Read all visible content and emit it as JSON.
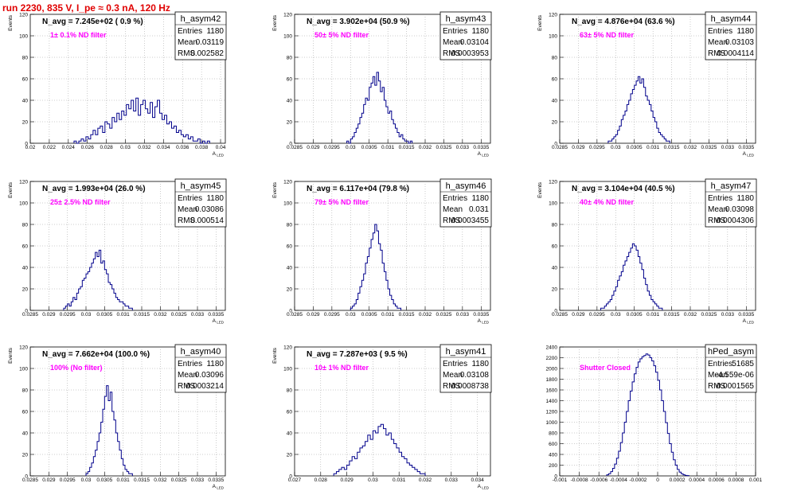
{
  "title": "run 2230,   835 V, I_pe ≈ 0.3 nA, 120 Hz",
  "stats_labels": {
    "entries": "Entries",
    "mean": "Mean",
    "rms": "RMS"
  },
  "colors": {
    "hist": "#00008b",
    "grid": "#9a9a9a",
    "filter_text": "#ff00ff",
    "title_text": "#e00000"
  },
  "chart_data": [
    {
      "type": "histogram",
      "name": "h_asym42",
      "nlabel": "N_avg = 7.245e+02 ( 0.9 %)",
      "filter": "1± 0.1% ND filter",
      "entries": "1180",
      "mean": "0.03119",
      "rms": "0.002582",
      "ylabel": "Events",
      "xlabel": "A_LED",
      "xlim": [
        0.02,
        0.0405
      ],
      "ylim": [
        0,
        120
      ],
      "xticks": [
        0.02,
        0.022,
        0.024,
        0.026,
        0.028,
        0.03,
        0.032,
        0.034,
        0.036,
        0.038,
        0.04
      ],
      "xticklabels": [
        "0.02",
        "0.022",
        "0.024",
        "0.026",
        "0.028",
        "0.03",
        "0.032",
        "0.034",
        "0.036",
        "0.038",
        "0.04"
      ],
      "yticks": [
        0,
        20,
        40,
        60,
        80,
        100,
        120
      ],
      "bin_start": 0.0246,
      "bin_width": 0.00025,
      "counts": [
        2,
        0,
        2,
        4,
        2,
        6,
        4,
        8,
        12,
        8,
        14,
        16,
        10,
        20,
        18,
        14,
        24,
        20,
        28,
        22,
        30,
        26,
        36,
        32,
        40,
        30,
        42,
        26,
        36,
        40,
        32,
        28,
        38,
        24,
        34,
        40,
        28,
        22,
        26,
        18,
        20,
        14,
        16,
        10,
        12,
        8,
        6,
        8,
        4,
        6,
        2,
        2,
        4,
        0,
        2,
        0,
        2
      ]
    },
    {
      "type": "histogram",
      "name": "h_asym43",
      "nlabel": "N_avg = 3.902e+04 (50.9 %)",
      "filter": "50± 5% ND filter",
      "entries": "1180",
      "mean": "0.03104",
      "rms": "0.0003953",
      "ylabel": "Events",
      "xlabel": "A_LED",
      "xlim": [
        0.0285,
        0.03375
      ],
      "ylim": [
        0,
        120
      ],
      "xticks": [
        0.0285,
        0.029,
        0.0295,
        0.03,
        0.0305,
        0.031,
        0.0315,
        0.032,
        0.0325,
        0.033,
        0.0335
      ],
      "xticklabels": [
        "0.0285",
        "0.029",
        "0.0295",
        "0.03",
        "0.0305",
        "0.031",
        "0.0315",
        "0.032",
        "0.0325",
        "0.033",
        "0.0335"
      ],
      "yticks": [
        0,
        20,
        40,
        60,
        80,
        100,
        120
      ],
      "bin_start": 0.0299,
      "bin_width": 5e-05,
      "counts": [
        2,
        0,
        4,
        6,
        10,
        14,
        18,
        24,
        28,
        36,
        42,
        40,
        52,
        56,
        62,
        54,
        66,
        58,
        48,
        52,
        40,
        34,
        28,
        30,
        22,
        18,
        14,
        10,
        6,
        8,
        4,
        2,
        2,
        0,
        2
      ]
    },
    {
      "type": "histogram",
      "name": "h_asym44",
      "nlabel": "N_avg = 4.876e+04 (63.6 %)",
      "filter": "63± 5% ND filter",
      "entries": "1180",
      "mean": "0.03103",
      "rms": "0.0004114",
      "ylabel": "Events",
      "xlabel": "A_LED",
      "xlim": [
        0.0285,
        0.03375
      ],
      "ylim": [
        0,
        120
      ],
      "xticks": [
        0.0285,
        0.029,
        0.0295,
        0.03,
        0.0305,
        0.031,
        0.0315,
        0.032,
        0.0325,
        0.033,
        0.0335
      ],
      "xticklabels": [
        "0.0285",
        "0.029",
        "0.0295",
        "0.03",
        "0.0305",
        "0.031",
        "0.0315",
        "0.032",
        "0.0325",
        "0.033",
        "0.0335"
      ],
      "yticks": [
        0,
        20,
        40,
        60,
        80,
        100,
        120
      ],
      "bin_start": 0.0298,
      "bin_width": 5e-05,
      "counts": [
        2,
        2,
        4,
        6,
        8,
        12,
        16,
        22,
        26,
        30,
        36,
        40,
        46,
        50,
        54,
        58,
        62,
        56,
        60,
        52,
        44,
        40,
        36,
        30,
        24,
        20,
        14,
        10,
        8,
        6,
        4,
        2,
        2
      ]
    },
    {
      "type": "histogram",
      "name": "h_asym45",
      "nlabel": "N_avg = 1.993e+04 (26.0 %)",
      "filter": "25± 2.5% ND filter",
      "entries": "1180",
      "mean": "0.03086",
      "rms": "0.000514",
      "ylabel": "Events",
      "xlabel": "A_LED",
      "xlim": [
        0.0285,
        0.03375
      ],
      "ylim": [
        0,
        120
      ],
      "xticks": [
        0.0285,
        0.029,
        0.0295,
        0.03,
        0.0305,
        0.031,
        0.0315,
        0.032,
        0.0325,
        0.033,
        0.0335
      ],
      "xticklabels": [
        "0.0285",
        "0.029",
        "0.0295",
        "0.03",
        "0.0305",
        "0.031",
        "0.0315",
        "0.032",
        "0.0325",
        "0.033",
        "0.0335"
      ],
      "yticks": [
        0,
        20,
        40,
        60,
        80,
        100,
        120
      ],
      "bin_start": 0.0294,
      "bin_width": 5e-05,
      "counts": [
        2,
        4,
        6,
        4,
        8,
        12,
        10,
        16,
        20,
        22,
        28,
        30,
        34,
        36,
        40,
        44,
        48,
        54,
        50,
        56,
        44,
        46,
        38,
        34,
        26,
        24,
        20,
        16,
        12,
        10,
        8,
        8,
        6,
        4,
        4,
        2,
        2
      ]
    },
    {
      "type": "histogram",
      "name": "h_asym46",
      "nlabel": "N_avg = 6.117e+04 (79.8 %)",
      "filter": "79± 5% ND filter",
      "entries": "1180",
      "mean": "0.031",
      "rms": "0.0003455",
      "ylabel": "Events",
      "xlabel": "A_LED",
      "xlim": [
        0.0285,
        0.03375
      ],
      "ylim": [
        0,
        120
      ],
      "xticks": [
        0.0285,
        0.029,
        0.0295,
        0.03,
        0.0305,
        0.031,
        0.0315,
        0.032,
        0.0325,
        0.033,
        0.0335
      ],
      "xticklabels": [
        "0.0285",
        "0.029",
        "0.0295",
        "0.03",
        "0.0305",
        "0.031",
        "0.0315",
        "0.032",
        "0.0325",
        "0.033",
        "0.0335"
      ],
      "yticks": [
        0,
        20,
        40,
        60,
        80,
        100,
        120
      ],
      "bin_start": 0.03,
      "bin_width": 5e-05,
      "counts": [
        2,
        4,
        6,
        10,
        16,
        22,
        28,
        34,
        44,
        50,
        58,
        66,
        72,
        80,
        74,
        62,
        56,
        44,
        36,
        28,
        20,
        14,
        10,
        6,
        4,
        2,
        2
      ]
    },
    {
      "type": "histogram",
      "name": "h_asym47",
      "nlabel": "N_avg = 3.104e+04 (40.5 %)",
      "filter": "40± 4% ND filter",
      "entries": "1180",
      "mean": "0.03098",
      "rms": "0.0004306",
      "ylabel": "Events",
      "xlabel": "A_LED",
      "xlim": [
        0.0285,
        0.03375
      ],
      "ylim": [
        0,
        120
      ],
      "xticks": [
        0.0285,
        0.029,
        0.0295,
        0.03,
        0.0305,
        0.031,
        0.0315,
        0.032,
        0.0325,
        0.033,
        0.0335
      ],
      "xticklabels": [
        "0.0285",
        "0.029",
        "0.0295",
        "0.03",
        "0.0305",
        "0.031",
        "0.0315",
        "0.032",
        "0.0325",
        "0.033",
        "0.0335"
      ],
      "yticks": [
        0,
        20,
        40,
        60,
        80,
        100,
        120
      ],
      "bin_start": 0.0296,
      "bin_width": 5e-05,
      "counts": [
        2,
        2,
        4,
        6,
        8,
        10,
        14,
        18,
        22,
        28,
        32,
        36,
        42,
        46,
        50,
        54,
        58,
        62,
        60,
        56,
        50,
        44,
        38,
        30,
        24,
        18,
        14,
        10,
        8,
        6,
        4,
        2,
        2
      ]
    },
    {
      "type": "histogram",
      "name": "h_asym40",
      "nlabel": "N_avg = 7.662e+04 (100.0 %)",
      "filter": "100% (No filter)",
      "entries": "1180",
      "mean": "0.03096",
      "rms": "0.0003214",
      "ylabel": "Events",
      "xlabel": "A_LED",
      "xlim": [
        0.0285,
        0.03375
      ],
      "ylim": [
        0,
        120
      ],
      "xticks": [
        0.0285,
        0.029,
        0.0295,
        0.03,
        0.0305,
        0.031,
        0.0315,
        0.032,
        0.0325,
        0.033,
        0.0335
      ],
      "xticklabels": [
        "0.0285",
        "0.029",
        "0.0295",
        "0.03",
        "0.0305",
        "0.031",
        "0.0315",
        "0.032",
        "0.0325",
        "0.033",
        "0.0335"
      ],
      "yticks": [
        0,
        20,
        40,
        60,
        80,
        100,
        120
      ],
      "bin_start": 0.03,
      "bin_width": 5e-05,
      "counts": [
        2,
        4,
        8,
        12,
        18,
        24,
        32,
        40,
        50,
        62,
        74,
        84,
        70,
        78,
        60,
        52,
        40,
        32,
        24,
        16,
        10,
        6,
        4,
        2,
        2
      ]
    },
    {
      "type": "histogram",
      "name": "h_asym41",
      "nlabel": "N_avg = 7.287e+03 ( 9.5 %)",
      "filter": "10± 1% ND filter",
      "entries": "1180",
      "mean": "0.03108",
      "rms": "0.0008738",
      "ylabel": "Events",
      "xlabel": "A_LED",
      "xlim": [
        0.027,
        0.0345
      ],
      "ylim": [
        0,
        120
      ],
      "xticks": [
        0.027,
        0.028,
        0.029,
        0.03,
        0.031,
        0.032,
        0.033,
        0.034
      ],
      "xticklabels": [
        "0.027",
        "0.028",
        "0.029",
        "0.03",
        "0.031",
        "0.032",
        "0.033",
        "0.034"
      ],
      "yticks": [
        0,
        20,
        40,
        60,
        80,
        100,
        120
      ],
      "bin_start": 0.0285,
      "bin_width": 0.0001,
      "counts": [
        2,
        4,
        6,
        8,
        6,
        10,
        14,
        18,
        16,
        22,
        26,
        28,
        32,
        38,
        34,
        42,
        40,
        46,
        48,
        44,
        38,
        40,
        34,
        30,
        26,
        22,
        18,
        16,
        12,
        10,
        8,
        6,
        4,
        2,
        2
      ]
    },
    {
      "type": "histogram",
      "name": "hPed_asym",
      "nlabel": "",
      "filter": "Shutter Closed",
      "entries": "51685",
      "mean": "-4.559e-06",
      "rms": "0.0001565",
      "ylabel": "",
      "xlabel": "",
      "xlim": [
        -0.001,
        0.001
      ],
      "ylim": [
        0,
        2400
      ],
      "xticks": [
        -0.001,
        -0.0008,
        -0.0006,
        -0.0004,
        -0.0002,
        0,
        0.0002,
        0.0004,
        0.0006,
        0.0008,
        0.001
      ],
      "xticklabels": [
        "-0.001",
        "-0.0008",
        "-0.0006",
        "-0.0004",
        "-0.0002",
        "0",
        "0.0002",
        "0.0004",
        "0.0006",
        "0.0008",
        "0.001"
      ],
      "yticks": [
        0,
        200,
        400,
        600,
        800,
        1000,
        1200,
        1400,
        1600,
        1800,
        2000,
        2200,
        2400
      ],
      "bin_start": -0.00052,
      "bin_width": 2e-05,
      "counts": [
        20,
        40,
        80,
        140,
        220,
        330,
        460,
        620,
        800,
        1000,
        1200,
        1400,
        1580,
        1750,
        1900,
        2020,
        2120,
        2180,
        2220,
        2240,
        2270,
        2250,
        2200,
        2140,
        2050,
        1930,
        1780,
        1600,
        1400,
        1200,
        990,
        790,
        600,
        440,
        300,
        200,
        120,
        70,
        40,
        20,
        10,
        5
      ]
    }
  ]
}
